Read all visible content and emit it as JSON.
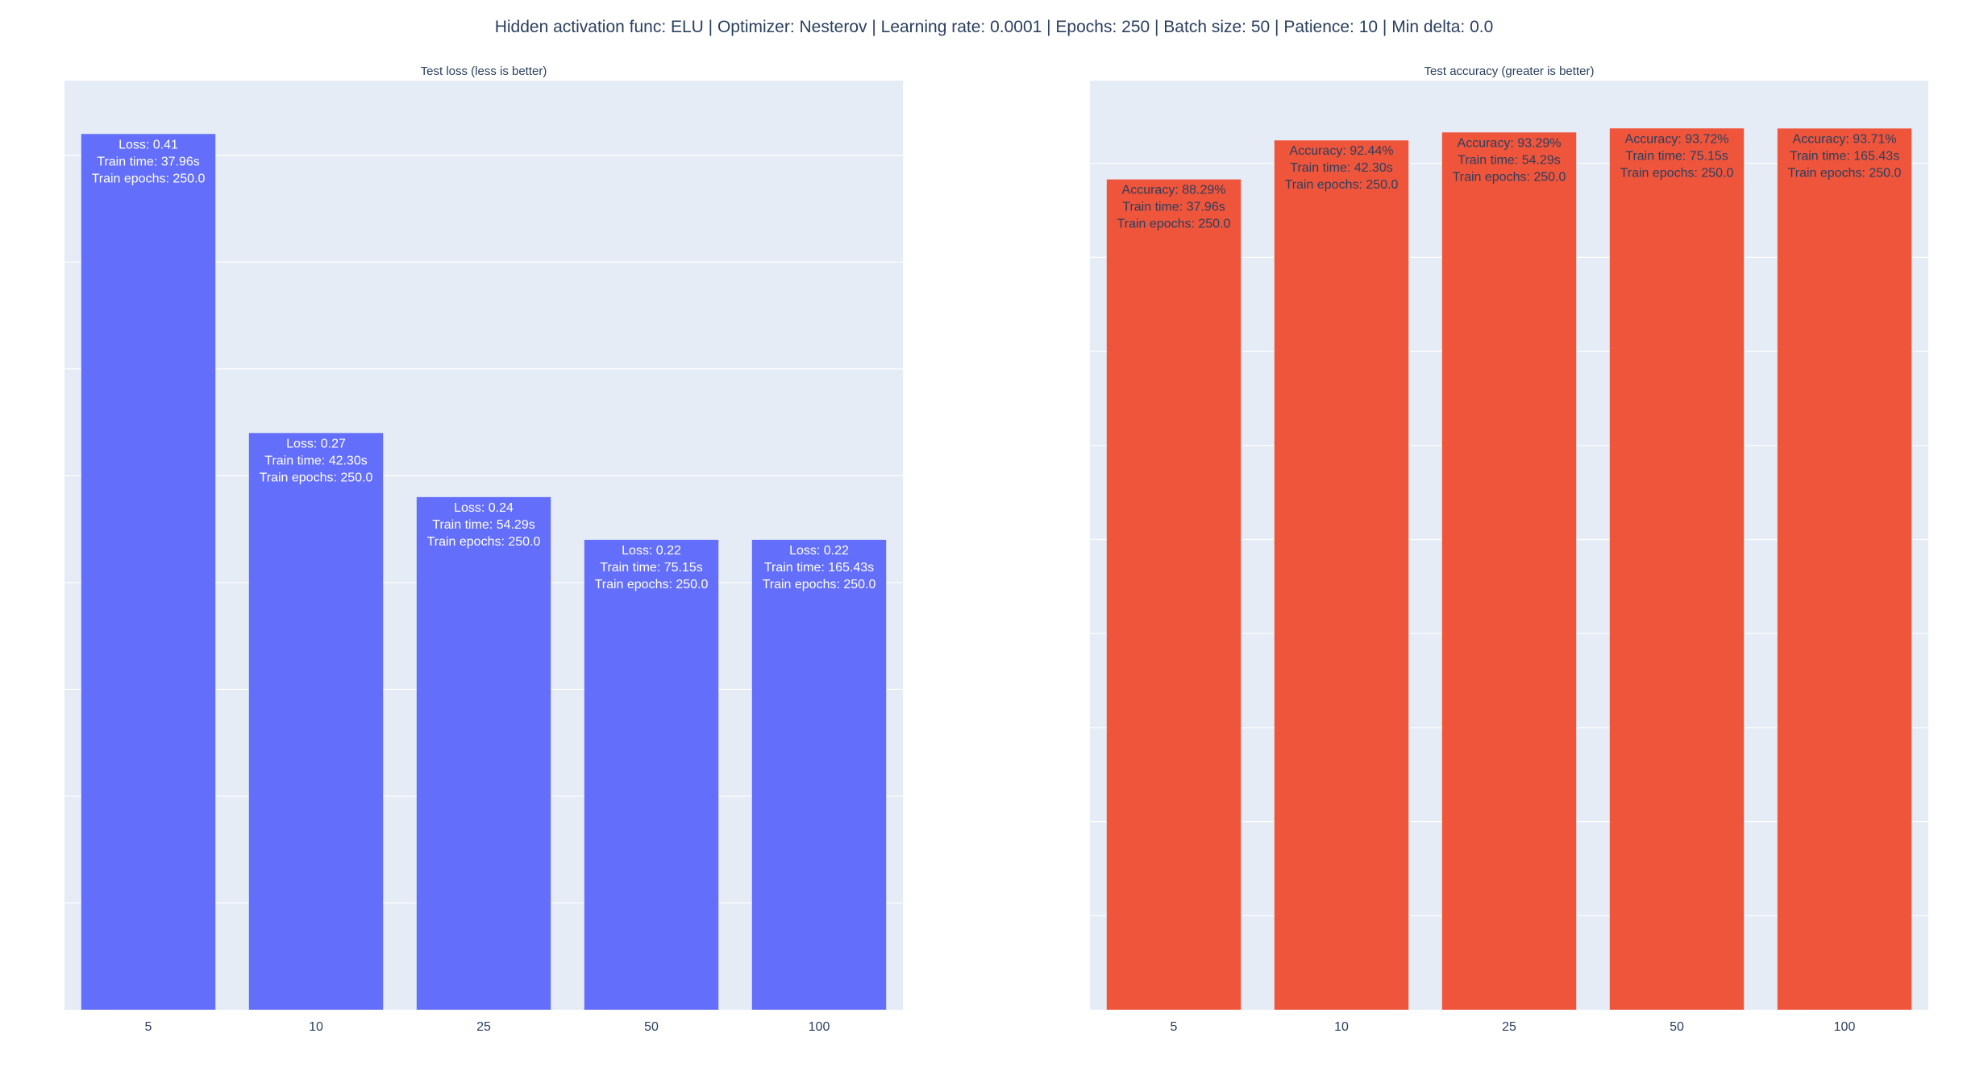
{
  "figure_title": "Hidden activation func: ELU | Optimizer: Nesterov | Learning rate: 0.0001 | Epochs: 250 | Batch size: 50 | Patience: 10 | Min delta: 0.0",
  "colors": {
    "plot_background": "#e5ecf6",
    "grid": "#ffffff",
    "loss_bar": "#636efa",
    "accuracy_bar": "#ef553b",
    "text": "#2a3f5f",
    "loss_label_text": "#ffffff",
    "accuracy_label_text": "#2a3f5f"
  },
  "chart_data": [
    {
      "type": "bar",
      "title": "Test loss (less is better)",
      "xlabel": "",
      "ylabel": "",
      "categories": [
        "5",
        "10",
        "25",
        "50",
        "100"
      ],
      "values": [
        0.41,
        0.27,
        0.24,
        0.22,
        0.22
      ],
      "ylim": [
        0,
        0.435
      ],
      "grid": true,
      "gridlines": [
        0.05,
        0.1,
        0.15,
        0.2,
        0.25,
        0.3,
        0.35,
        0.4
      ],
      "show_ytick_labels": false,
      "color": "#636efa",
      "bar_labels": [
        [
          "Loss: 0.41",
          "Train time: 37.96s",
          "Train epochs: 250.0"
        ],
        [
          "Loss: 0.27",
          "Train time: 42.30s",
          "Train epochs: 250.0"
        ],
        [
          "Loss: 0.24",
          "Train time: 54.29s",
          "Train epochs: 250.0"
        ],
        [
          "Loss: 0.22",
          "Train time: 75.15s",
          "Train epochs: 250.0"
        ],
        [
          "Loss: 0.22",
          "Train time: 165.43s",
          "Train epochs: 250.0"
        ]
      ]
    },
    {
      "type": "bar",
      "title": "Test accuracy (greater is better)",
      "xlabel": "",
      "ylabel": "",
      "categories": [
        "5",
        "10",
        "25",
        "50",
        "100"
      ],
      "values": [
        88.29,
        92.44,
        93.29,
        93.72,
        93.71
      ],
      "ylim": [
        0,
        98.8
      ],
      "grid": true,
      "gridlines": [
        10,
        20,
        30,
        40,
        50,
        60,
        70,
        80,
        90
      ],
      "show_ytick_labels": false,
      "color": "#ef553b",
      "bar_labels": [
        [
          "Accuracy: 88.29%",
          "Train time: 37.96s",
          "Train epochs: 250.0"
        ],
        [
          "Accuracy: 92.44%",
          "Train time: 42.30s",
          "Train epochs: 250.0"
        ],
        [
          "Accuracy: 93.29%",
          "Train time: 54.29s",
          "Train epochs: 250.0"
        ],
        [
          "Accuracy: 93.72%",
          "Train time: 75.15s",
          "Train epochs: 250.0"
        ],
        [
          "Accuracy: 93.71%",
          "Train time: 165.43s",
          "Train epochs: 250.0"
        ]
      ]
    }
  ]
}
